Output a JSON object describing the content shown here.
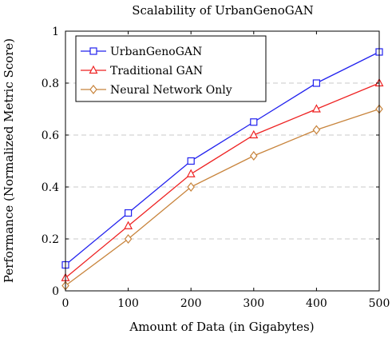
{
  "chart_data": {
    "type": "line",
    "title": "Scalability of UrbanGenoGAN",
    "xlabel": "Amount of Data (in Gigabytes)",
    "ylabel": "Performance (Normalized Metric Score)",
    "x": [
      0,
      100,
      200,
      300,
      400,
      500
    ],
    "xlim": [
      0,
      500
    ],
    "ylim": [
      0,
      1
    ],
    "xticks": [
      "0",
      "100",
      "200",
      "300",
      "400",
      "500"
    ],
    "yticks": [
      "0",
      "0.2",
      "0.4",
      "0.6",
      "0.8",
      "1"
    ],
    "ytick_values": [
      0,
      0.2,
      0.4,
      0.6,
      0.8,
      1
    ],
    "grid": "horizontal dashed",
    "legend_position": "top-left",
    "series": [
      {
        "name": "UrbanGenoGAN",
        "values": [
          0.1,
          0.3,
          0.5,
          0.65,
          0.8,
          0.92
        ],
        "color": "#2222ee",
        "marker": "square"
      },
      {
        "name": "Traditional GAN",
        "values": [
          0.05,
          0.25,
          0.45,
          0.6,
          0.7,
          0.8
        ],
        "color": "#ee2222",
        "marker": "triangle"
      },
      {
        "name": "Neural Network Only",
        "values": [
          0.02,
          0.2,
          0.4,
          0.52,
          0.62,
          0.7
        ],
        "color": "#c8843c",
        "marker": "diamond"
      }
    ]
  }
}
